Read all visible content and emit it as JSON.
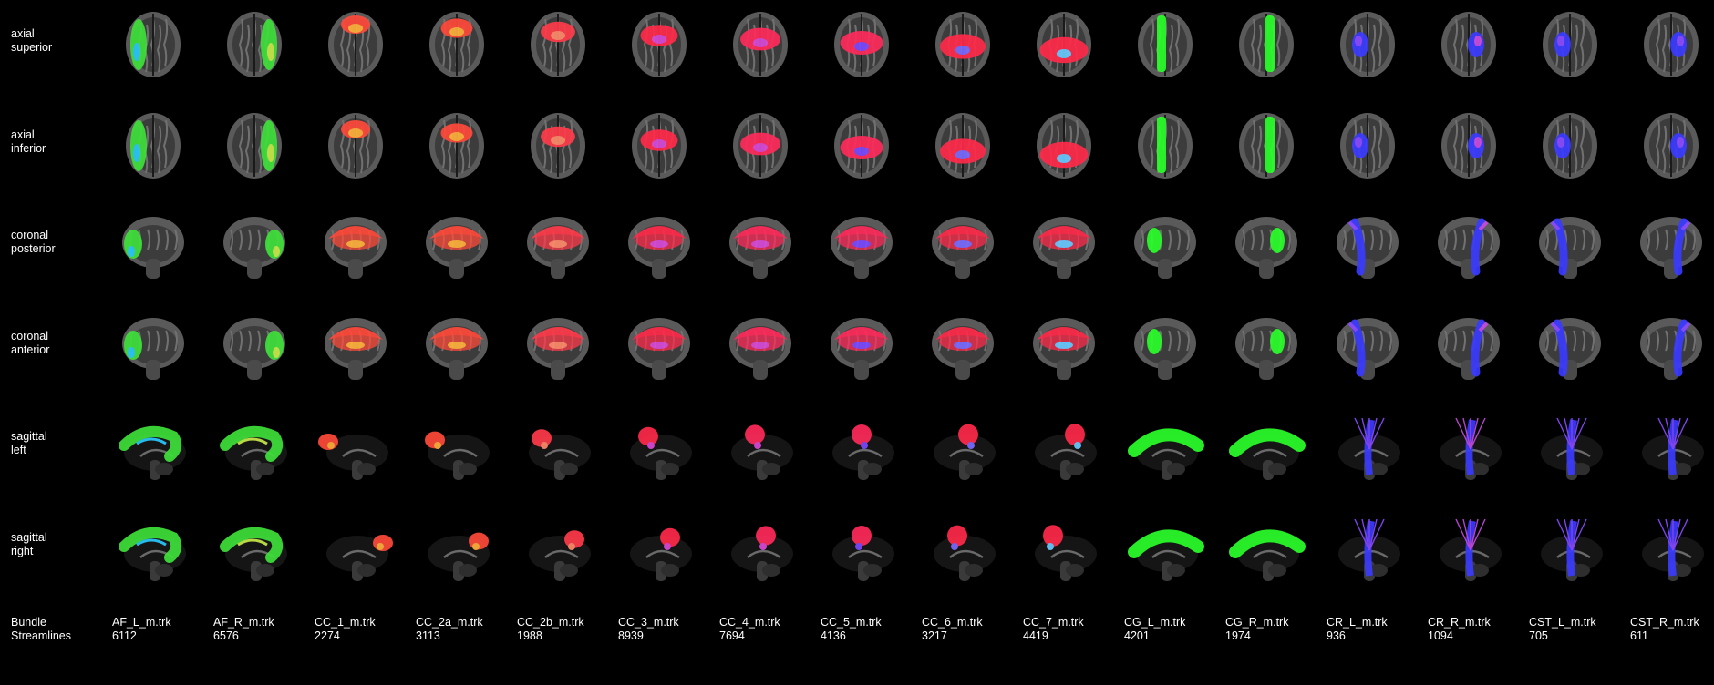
{
  "row_labels": [
    [
      "axial",
      "superior"
    ],
    [
      "axial",
      "inferior"
    ],
    [
      "coronal",
      "posterior"
    ],
    [
      "coronal",
      "anterior"
    ],
    [
      "sagittal",
      "left"
    ],
    [
      "sagittal",
      "right"
    ]
  ],
  "footer_labels": [
    "Bundle",
    "Streamlines"
  ],
  "bundles": [
    {
      "name": "AF_L_m.trk",
      "streamlines": "6112",
      "color": "#3fe03a",
      "alt": "#2bc8ff"
    },
    {
      "name": "AF_R_m.trk",
      "streamlines": "6576",
      "color": "#3fe03a",
      "alt": "#c8e84a"
    },
    {
      "name": "CC_1_m.trk",
      "streamlines": "2274",
      "color": "#ff4a3a",
      "alt": "#ffb03a"
    },
    {
      "name": "CC_2a_m.trk",
      "streamlines": "3113",
      "color": "#ff4a3a",
      "alt": "#ffb03a"
    },
    {
      "name": "CC_2b_m.trk",
      "streamlines": "1988",
      "color": "#ff3a4a",
      "alt": "#ff8a6a"
    },
    {
      "name": "CC_3_m.trk",
      "streamlines": "8939",
      "color": "#ff2a4a",
      "alt": "#d84ad8"
    },
    {
      "name": "CC_4_m.trk",
      "streamlines": "7694",
      "color": "#ff2a5a",
      "alt": "#d84ad8"
    },
    {
      "name": "CC_5_m.trk",
      "streamlines": "4136",
      "color": "#ff2a5a",
      "alt": "#7a4aff"
    },
    {
      "name": "CC_6_m.trk",
      "streamlines": "3217",
      "color": "#ff2a4a",
      "alt": "#7a6aff"
    },
    {
      "name": "CC_7_m.trk",
      "streamlines": "4419",
      "color": "#ff2a4a",
      "alt": "#6ac8ff"
    },
    {
      "name": "CG_L_m.trk",
      "streamlines": "4201",
      "color": "#2aff2a",
      "alt": "#2aff6a"
    },
    {
      "name": "CG_R_m.trk",
      "streamlines": "1974",
      "color": "#2aff2a",
      "alt": "#4ad84a"
    },
    {
      "name": "CR_L_m.trk",
      "streamlines": "936",
      "color": "#3a3aff",
      "alt": "#8a4aff"
    },
    {
      "name": "CR_R_m.trk",
      "streamlines": "1094",
      "color": "#3a3aff",
      "alt": "#c84ae0"
    },
    {
      "name": "CST_L_m.trk",
      "streamlines": "705",
      "color": "#3a3aff",
      "alt": "#8a4aff"
    },
    {
      "name": "CST_R_m.trk",
      "streamlines": "611",
      "color": "#3a3aff",
      "alt": "#8a4aff"
    }
  ],
  "views": [
    "axial-superior",
    "axial-inferior",
    "coronal-posterior",
    "coronal-anterior",
    "sagittal-left",
    "sagittal-right"
  ]
}
